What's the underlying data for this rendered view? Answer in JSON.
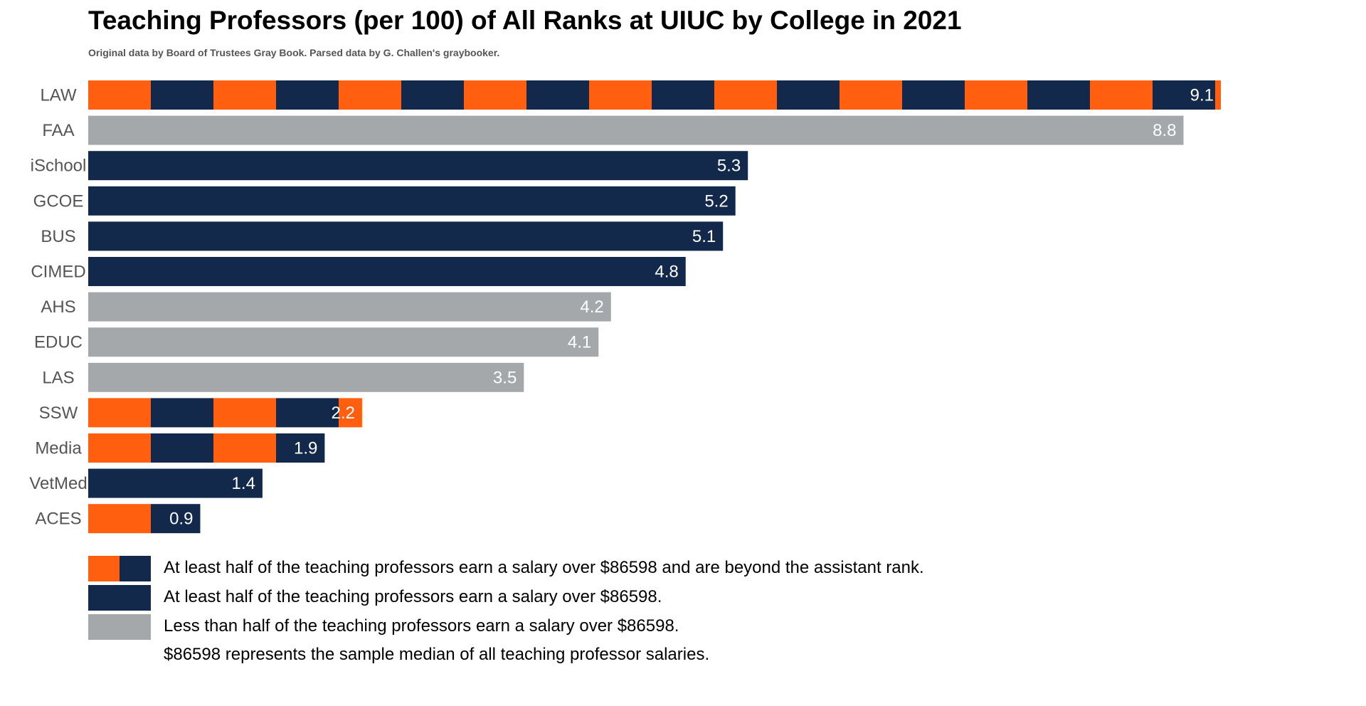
{
  "chart_data": {
    "type": "bar",
    "orientation": "horizontal",
    "title": "Teaching Professors (per 100) of All Ranks at UIUC by College in 2021",
    "subtitle": "Original data by Board of Trustees Gray Book. Parsed data by G. Challen's graybooker.",
    "categories": [
      "LAW",
      "FAA",
      "iSchool",
      "GCOE",
      "BUS",
      "CIMED",
      "AHS",
      "EDUC",
      "LAS",
      "SSW",
      "Media",
      "VetMed",
      "ACES"
    ],
    "values": [
      9.1,
      8.8,
      5.3,
      5.2,
      5.1,
      4.8,
      4.2,
      4.1,
      3.5,
      2.2,
      1.9,
      1.4,
      0.9
    ],
    "value_labels": [
      "9.1",
      "8.8",
      "5.3",
      "5.2",
      "5.1",
      "4.8",
      "4.2",
      "4.1",
      "3.5",
      "2.2",
      "1.9",
      "1.4",
      "0.9"
    ],
    "groups": [
      "above_beyond",
      "below",
      "above",
      "above",
      "above",
      "above",
      "below",
      "below",
      "below",
      "above_beyond",
      "above_beyond",
      "above",
      "above_beyond"
    ],
    "group_colors": {
      "above_beyond": [
        "#FF5F0F",
        "#13294B"
      ],
      "above": "#13294B",
      "below": "#A5A8AB"
    },
    "xlim": [
      0,
      9.1
    ],
    "grid": false,
    "legend": {
      "placement": "bottom",
      "entries": [
        {
          "group": "above_beyond",
          "label": "At least half of the teaching professors earn a salary over $86598 and are beyond the assistant rank."
        },
        {
          "group": "above",
          "label": "At least half of the teaching professors earn a salary over $86598."
        },
        {
          "group": "below",
          "label": "Less than half of the teaching professors earn a salary over $86598."
        }
      ]
    },
    "note": "$86598 represents the sample median of all teaching professor salaries."
  }
}
